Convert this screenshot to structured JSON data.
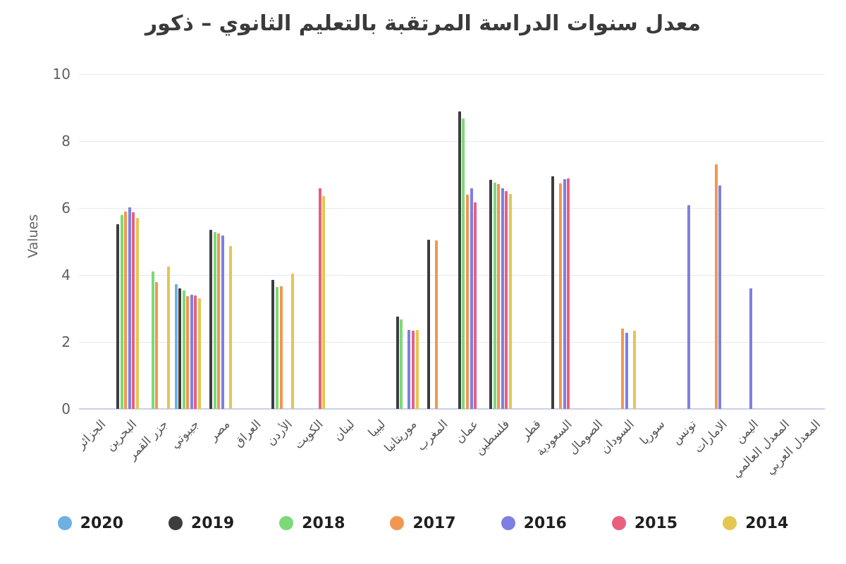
{
  "title": "معدل سنوات الدراسة المرتقبة بالتعليم الثانوي – ذكور",
  "chart_data": {
    "type": "bar",
    "title": "معدل سنوات الدراسة المرتقبة بالتعليم الثانوي – ذكور",
    "xlabel": "",
    "ylabel": "Values",
    "ylim": [
      0,
      10
    ],
    "yticks": [
      0,
      2,
      4,
      6,
      8,
      10
    ],
    "grid": true,
    "legend_position": "bottom",
    "categories": [
      "الجزائر",
      "البحرين",
      "جزر القمر",
      "جيبوتي",
      "مصر",
      "العراق",
      "الأردن",
      "الكويت",
      "لبنان",
      "ليبيا",
      "موريتانيا",
      "المغرب",
      "عمان",
      "فلسطين",
      "قطر",
      "السعودية",
      "الصومال",
      "السودان",
      "سوريا",
      "تونس",
      "الامارات",
      "اليمن",
      "المعدل العالمي",
      "المعدل العربي"
    ],
    "series": [
      {
        "name": "2020",
        "color": "#6db1e4",
        "values": [
          null,
          null,
          null,
          3.73,
          null,
          null,
          null,
          null,
          null,
          null,
          null,
          null,
          null,
          null,
          null,
          null,
          null,
          null,
          null,
          null,
          null,
          null,
          null,
          null
        ]
      },
      {
        "name": "2019",
        "color": "#3d3d40",
        "values": [
          null,
          5.52,
          null,
          3.6,
          5.35,
          null,
          3.86,
          null,
          null,
          null,
          2.75,
          5.06,
          8.88,
          6.84,
          null,
          6.95,
          null,
          null,
          null,
          null,
          null,
          null,
          null,
          null
        ]
      },
      {
        "name": "2018",
        "color": "#7cd977",
        "values": [
          null,
          5.79,
          4.1,
          3.54,
          5.28,
          null,
          3.65,
          null,
          null,
          null,
          2.68,
          null,
          8.68,
          6.76,
          null,
          null,
          null,
          null,
          null,
          null,
          null,
          null,
          null,
          null
        ]
      },
      {
        "name": "2017",
        "color": "#f29750",
        "values": [
          null,
          5.9,
          3.8,
          3.36,
          5.24,
          null,
          3.66,
          null,
          null,
          null,
          null,
          5.04,
          6.41,
          6.71,
          null,
          6.74,
          null,
          2.4,
          null,
          null,
          7.3,
          null,
          null,
          null
        ]
      },
      {
        "name": "2016",
        "color": "#7e7fe2",
        "values": [
          null,
          6.02,
          null,
          3.41,
          5.17,
          null,
          null,
          null,
          null,
          null,
          2.35,
          null,
          6.59,
          6.58,
          null,
          6.86,
          null,
          2.28,
          null,
          6.08,
          6.68,
          3.6,
          null,
          null
        ]
      },
      {
        "name": "2015",
        "color": "#e85f80",
        "values": [
          null,
          5.88,
          null,
          3.38,
          null,
          null,
          null,
          6.6,
          null,
          null,
          2.33,
          null,
          6.17,
          6.5,
          null,
          6.89,
          null,
          null,
          null,
          null,
          null,
          null,
          null,
          null
        ]
      },
      {
        "name": "2014",
        "color": "#e3c751",
        "values": [
          null,
          5.71,
          4.25,
          3.3,
          4.86,
          null,
          4.05,
          6.36,
          null,
          null,
          2.35,
          null,
          null,
          6.42,
          null,
          null,
          null,
          2.33,
          null,
          null,
          null,
          null,
          null,
          null
        ]
      }
    ]
  }
}
